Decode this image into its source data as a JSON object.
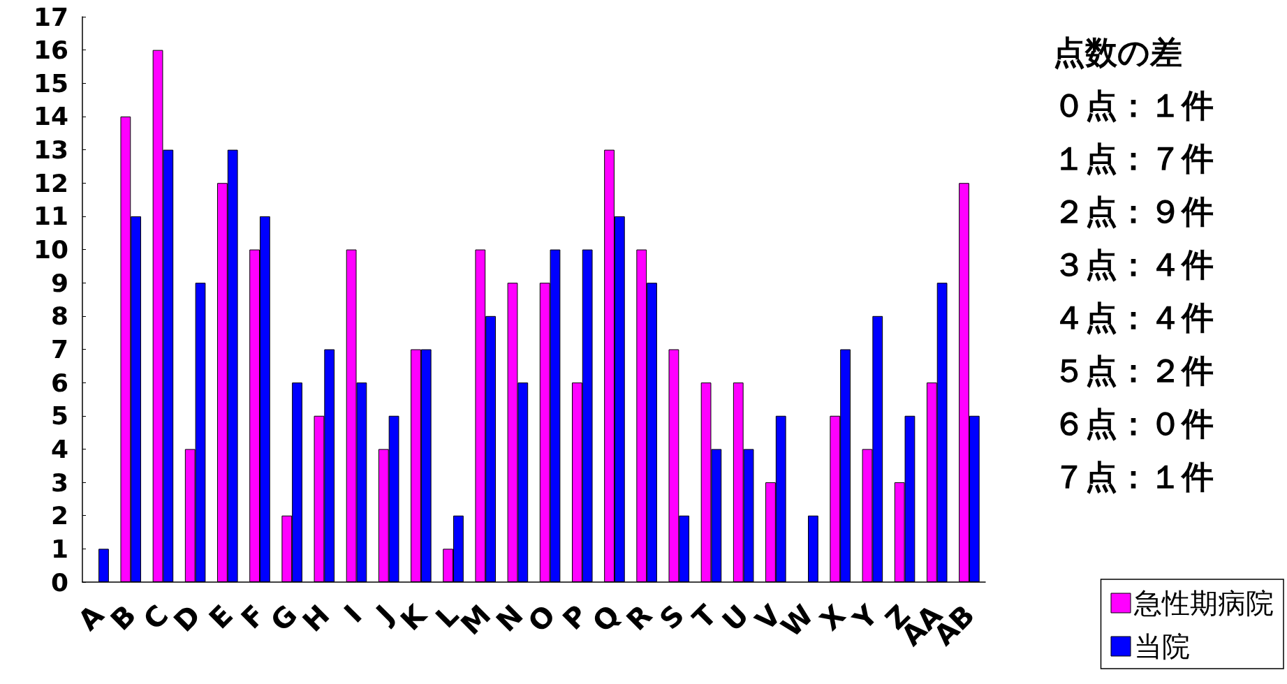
{
  "chart_data": {
    "type": "bar",
    "categories": [
      "A",
      "B",
      "C",
      "D",
      "E",
      "F",
      "G",
      "H",
      "I",
      "J",
      "K",
      "L",
      "M",
      "N",
      "O",
      "P",
      "Q",
      "R",
      "S",
      "T",
      "U",
      "V",
      "W",
      "X",
      "Y",
      "Z",
      "AA",
      "AB"
    ],
    "series": [
      {
        "name": "急性期病院",
        "color": "#ff00ff",
        "values": [
          0,
          14,
          16,
          4,
          12,
          10,
          2,
          5,
          10,
          4,
          7,
          1,
          10,
          9,
          9,
          6,
          13,
          10,
          7,
          6,
          6,
          3,
          0,
          5,
          4,
          3,
          6,
          12
        ]
      },
      {
        "name": "当院",
        "color": "#0000ff",
        "values": [
          1,
          11,
          13,
          9,
          13,
          11,
          6,
          7,
          6,
          5,
          7,
          2,
          8,
          6,
          10,
          10,
          11,
          9,
          2,
          4,
          4,
          5,
          2,
          7,
          8,
          5,
          9,
          5
        ]
      }
    ],
    "ylim": [
      0,
      17
    ],
    "yticks": [
      0,
      1,
      2,
      3,
      4,
      5,
      6,
      7,
      8,
      9,
      10,
      11,
      12,
      13,
      14,
      15,
      16,
      17
    ],
    "grid": false,
    "legend": "bottom right",
    "annotations": [
      "点数の差",
      "０点：１件",
      "１点：７件",
      "２点：９件",
      "３点：４件",
      "４点：４件",
      "５点：２件",
      "６点：０件",
      "７点：１件"
    ]
  }
}
